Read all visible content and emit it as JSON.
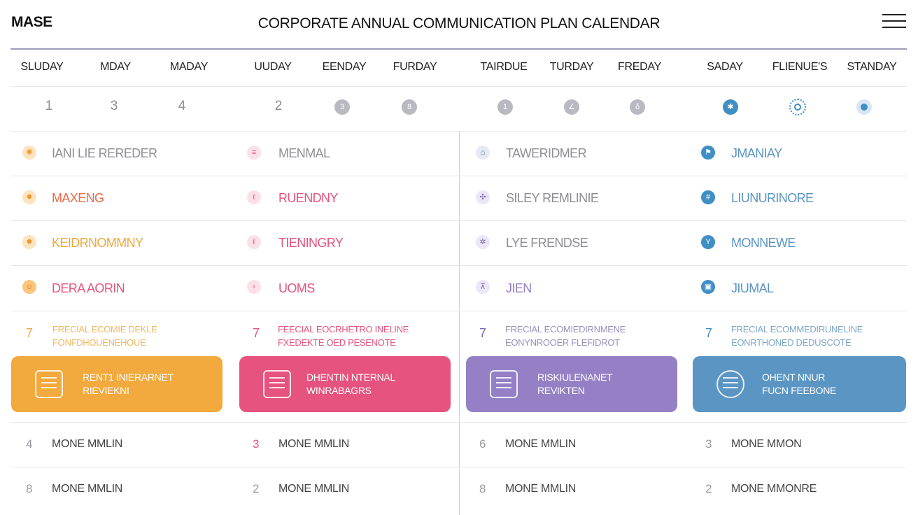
{
  "header": {
    "brand": "MASE",
    "title": "CORPORATE ANNUAL COMMUNICATION PLAN CALENDAR"
  },
  "days": [
    "SLUDAY",
    "MDAY",
    "MADAY",
    "UUDAY",
    "EENDAY",
    "FURDAY",
    "TAIRDUE",
    "TURDAY",
    "FREDAY",
    "SADAY",
    "FLIENUE'S",
    "STANDAY"
  ],
  "day_numbers": [
    "1",
    "3",
    "4",
    "2"
  ],
  "colors": {
    "orange": "#f0a83f",
    "pink": "#e6537e",
    "purple": "#9580c6",
    "blue": "#5b95c4",
    "grey_text": "#8e8e96"
  },
  "event_rows": [
    {
      "cells": [
        {
          "icon": "sun-icon",
          "label": "IANI LIE REREDER"
        },
        {
          "icon": "list-icon",
          "label": "MENMAL"
        },
        {
          "icon": "home-icon",
          "label": "TAWERIDMER"
        },
        {
          "icon": "flag-icon",
          "label": "JMANIAY"
        }
      ]
    },
    {
      "cells": [
        {
          "icon": "gear-icon",
          "label": "MAXENG"
        },
        {
          "icon": "pin-icon",
          "label": "RUENDNY"
        },
        {
          "icon": "puzzle-icon",
          "label": "SILEY REMLINIE"
        },
        {
          "icon": "hash-icon",
          "label": "LIUNURINORE"
        }
      ]
    },
    {
      "cells": [
        {
          "icon": "gear-icon",
          "label": "KEIDRNOMMNY"
        },
        {
          "icon": "pin-icon",
          "label": "TIENINGRY"
        },
        {
          "icon": "gear-icon",
          "label": "LYE FRENDSE"
        },
        {
          "icon": "cup-icon",
          "label": "MONNEWE"
        }
      ]
    },
    {
      "cells": [
        {
          "icon": "face-icon",
          "label": "DERA AORIN"
        },
        {
          "icon": "location-icon",
          "label": "UOMS"
        },
        {
          "icon": "chart-icon",
          "label": "JIEN"
        },
        {
          "icon": "box-icon",
          "label": "JIUMAL"
        }
      ]
    }
  ],
  "notes": [
    {
      "num": "7",
      "line1": "FRECIAL ECOMIE DEKLE",
      "line2": "FONFDHOUENEHOUE"
    },
    {
      "num": "7",
      "line1": "FEECIAL EOCRHETRO INELINE",
      "line2": "FXEDEKTE OED PESENOTE"
    },
    {
      "num": "7",
      "line1": "FRECIAL ECOMIEDIRNMENE",
      "line2": "EONYNROOER FLEFIDROT"
    },
    {
      "num": "7",
      "line1": "FRECIAL ECOMMEDIRUNELINE",
      "line2": "EONRTHONED DEDUSCOTE"
    }
  ],
  "cards": [
    {
      "icon": "calendar-icon",
      "line1": "RENT1 INIERARNET",
      "line2": "RIEVIEKNI"
    },
    {
      "icon": "document-icon",
      "line1": "DHENTIN NTERNAL",
      "line2": "WINRABAGRS"
    },
    {
      "icon": "newsletter-icon",
      "line1": "RISKIULENANET",
      "line2": "REVIKTEN"
    },
    {
      "icon": "bulb-icon",
      "line1": "OHENT NNUR",
      "line2": "FUCN FEEBONE"
    }
  ],
  "bottom_rows": [
    [
      {
        "num": "4",
        "text": "MONE MMLIN"
      },
      {
        "num": "3",
        "text": "MONE MMLIN"
      },
      {
        "num": "6",
        "text": "MONE MMLIN"
      },
      {
        "num": "3",
        "text": "MONE MMON"
      }
    ],
    [
      {
        "num": "8",
        "text": "MONE MMLIN"
      },
      {
        "num": "2",
        "text": "MONE MMLIN"
      },
      {
        "num": "8",
        "text": "MONE MMLIN"
      },
      {
        "num": "2",
        "text": "MONE MMONRE"
      }
    ]
  ]
}
